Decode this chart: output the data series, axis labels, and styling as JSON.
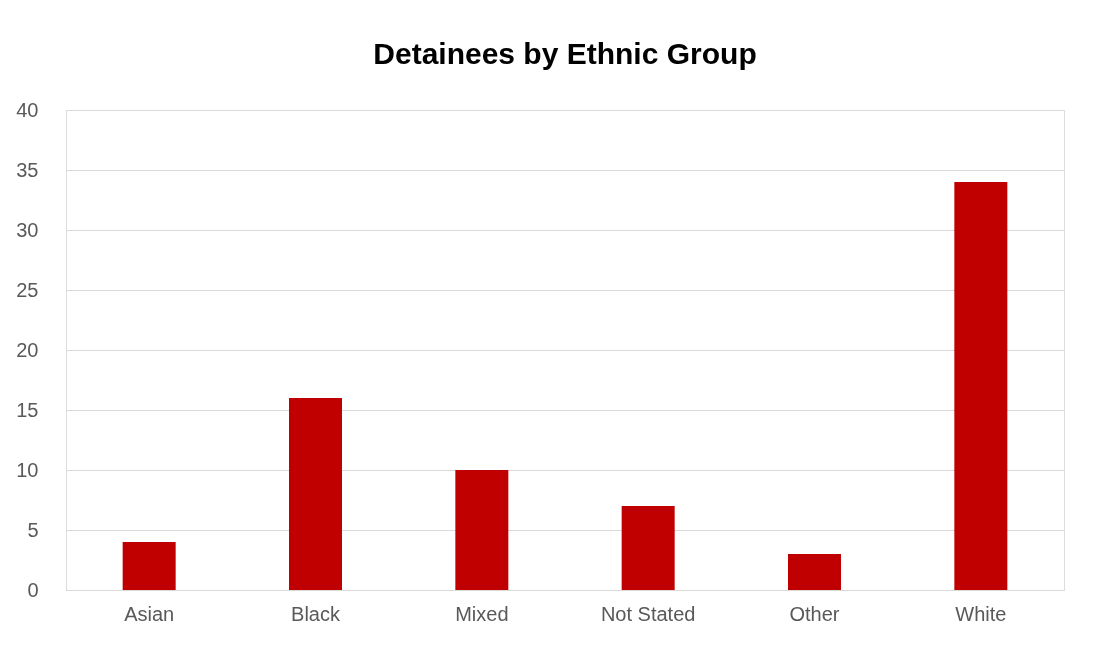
{
  "chart_data": {
    "type": "bar",
    "title": "Detainees by Ethnic Group",
    "categories": [
      "Asian",
      "Black",
      "Mixed",
      "Not Stated",
      "Other",
      "White"
    ],
    "values": [
      4,
      16,
      10,
      7,
      3,
      34
    ],
    "color": "#c00000",
    "ylim": [
      0,
      40
    ],
    "yticks": [
      0,
      5,
      10,
      15,
      20,
      25,
      30,
      35,
      40
    ],
    "grid": "y"
  }
}
